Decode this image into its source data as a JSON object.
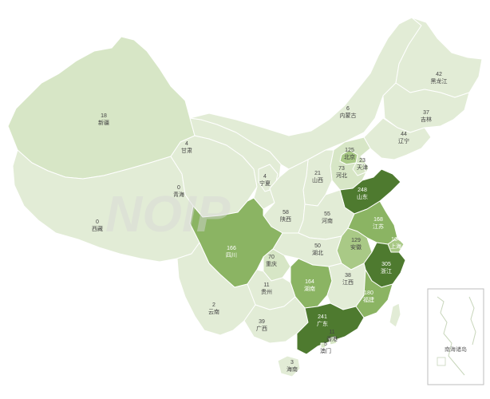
{
  "watermark": "NOIP",
  "colors": {
    "level0": "#e2ecd6",
    "level1": "#d7e6c6",
    "level2": "#c3d9aa",
    "level3": "#a9c986",
    "level4": "#8bb463",
    "level5": "#6a9845",
    "level6": "#4e7a2f"
  },
  "provinces": [
    {
      "id": "xinjiang",
      "name": "新疆",
      "value": "18"
    },
    {
      "id": "xizang",
      "name": "西藏",
      "value": "0"
    },
    {
      "id": "qinghai",
      "name": "青海",
      "value": "0"
    },
    {
      "id": "gansu",
      "name": "甘肃",
      "value": "4"
    },
    {
      "id": "neimenggu",
      "name": "内蒙古",
      "value": "6"
    },
    {
      "id": "heilongjiang",
      "name": "黑龙江",
      "value": "42"
    },
    {
      "id": "jilin",
      "name": "吉林",
      "value": "37"
    },
    {
      "id": "liaoning",
      "name": "辽宁",
      "value": "44"
    },
    {
      "id": "beijing",
      "name": "北京",
      "value": "125"
    },
    {
      "id": "tianjin",
      "name": "天津",
      "value": "23"
    },
    {
      "id": "hebei",
      "name": "河北",
      "value": "73"
    },
    {
      "id": "shanxi",
      "name": "山西",
      "value": "21"
    },
    {
      "id": "ningxia",
      "name": "宁夏",
      "value": "4"
    },
    {
      "id": "shaanxi",
      "name": "陕西",
      "value": "58"
    },
    {
      "id": "shandong",
      "name": "山东",
      "value": "248"
    },
    {
      "id": "henan",
      "name": "河南",
      "value": "55"
    },
    {
      "id": "jiangsu",
      "name": "江苏",
      "value": "168"
    },
    {
      "id": "shanghai",
      "name": "上海",
      "value": "104"
    },
    {
      "id": "anhui",
      "name": "安徽",
      "value": "129"
    },
    {
      "id": "hubei",
      "name": "湖北",
      "value": "50"
    },
    {
      "id": "zhejiang",
      "name": "浙江",
      "value": "305"
    },
    {
      "id": "sichuan",
      "name": "四川",
      "value": "166"
    },
    {
      "id": "chongqing",
      "name": "重庆",
      "value": "70"
    },
    {
      "id": "hunan",
      "name": "湖南",
      "value": "164"
    },
    {
      "id": "jiangxi",
      "name": "江西",
      "value": "38"
    },
    {
      "id": "fujian",
      "name": "福建",
      "value": "180"
    },
    {
      "id": "guizhou",
      "name": "贵州",
      "value": "11"
    },
    {
      "id": "yunnan",
      "name": "云南",
      "value": "2"
    },
    {
      "id": "guangxi",
      "name": "广西",
      "value": "39"
    },
    {
      "id": "guangdong",
      "name": "广东",
      "value": "241"
    },
    {
      "id": "xianggang",
      "name": "香港",
      "value": "11"
    },
    {
      "id": "aomen",
      "name": "澳门",
      "value": "5"
    },
    {
      "id": "hainan",
      "name": "海南",
      "value": "3"
    },
    {
      "id": "taiwan",
      "name": "",
      "value": ""
    }
  ],
  "inset": {
    "title": "南海诸岛"
  }
}
